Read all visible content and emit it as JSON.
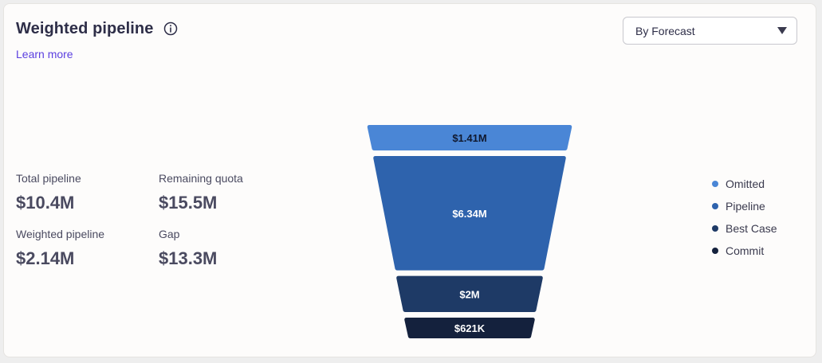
{
  "header": {
    "title": "Weighted pipeline",
    "learn_more": "Learn more"
  },
  "dropdown": {
    "selected": "By Forecast"
  },
  "stats": {
    "total_pipeline_label": "Total pipeline",
    "total_pipeline_value": "$10.4M",
    "remaining_quota_label": "Remaining quota",
    "remaining_quota_value": "$15.5M",
    "weighted_pipeline_label": "Weighted pipeline",
    "weighted_pipeline_value": "$2.14M",
    "gap_label": "Gap",
    "gap_value": "$13.3M"
  },
  "colors": {
    "omitted": "#4a86d6",
    "pipeline": "#2e63ad",
    "best_case": "#1e3a66",
    "commit": "#14213d"
  },
  "chart_data": {
    "type": "funnel",
    "categories": [
      "Omitted",
      "Pipeline",
      "Best Case",
      "Commit"
    ],
    "values": [
      1.41,
      6.34,
      2.0,
      0.621
    ],
    "unit": "$M",
    "labels": [
      "$1.41M",
      "$6.34M",
      "$2M",
      "$621K"
    ],
    "legend": [
      "Omitted",
      "Pipeline",
      "Best Case",
      "Commit"
    ],
    "legend_position": "right"
  }
}
